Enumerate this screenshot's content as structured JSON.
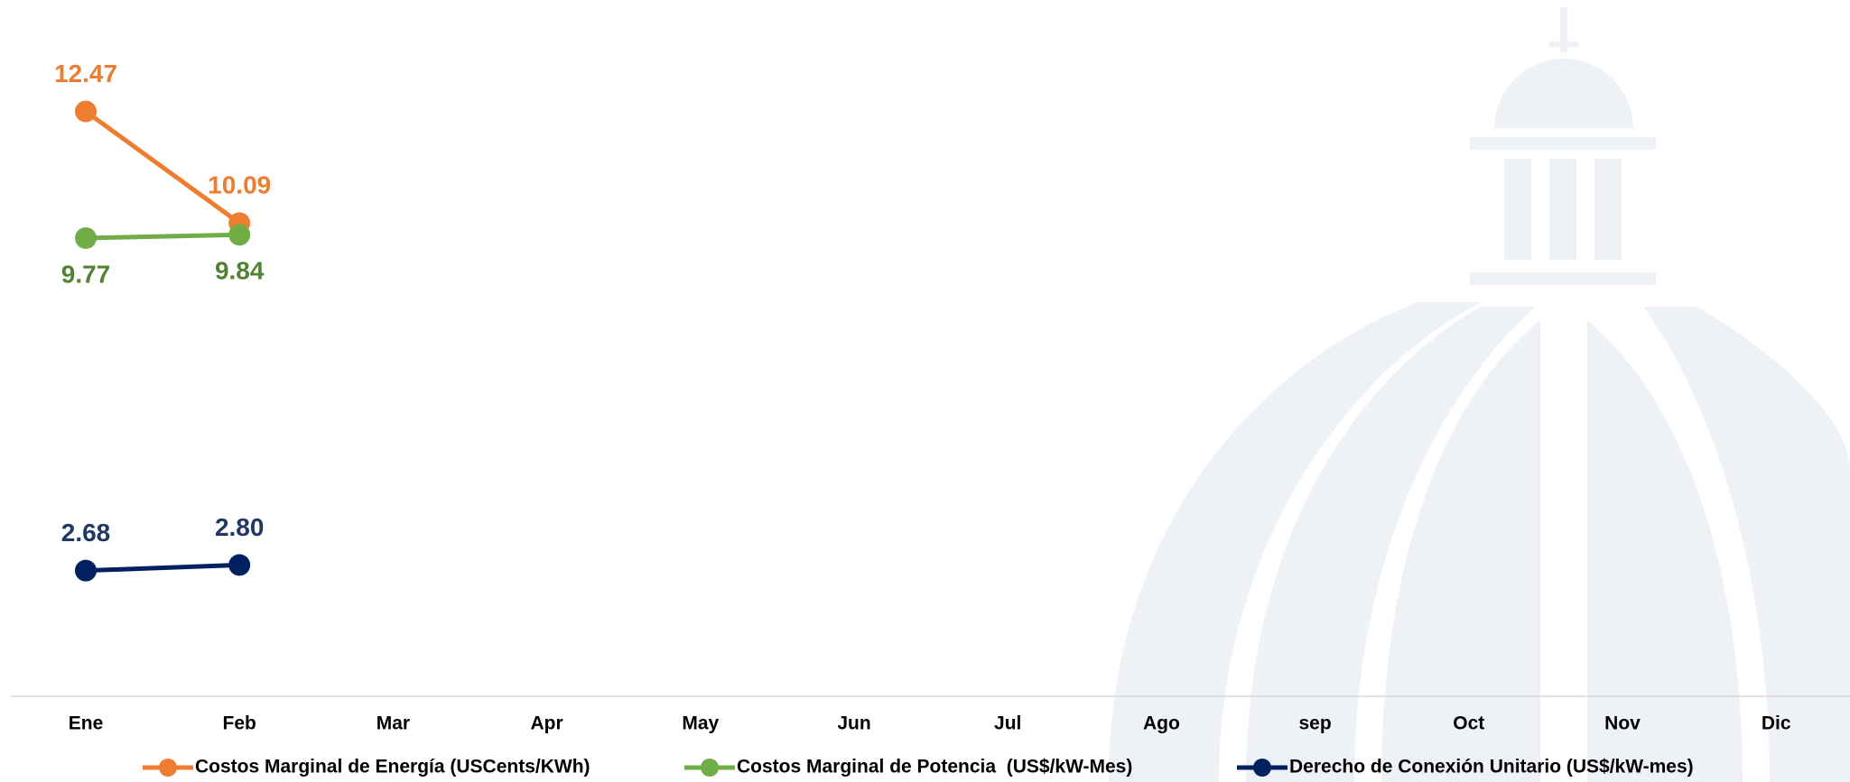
{
  "chart_data": {
    "type": "line",
    "categories": [
      "Ene",
      "Feb",
      "Mar",
      "Apr",
      "May",
      "Jun",
      "Jul",
      "Ago",
      "sep",
      "Oct",
      "Nov",
      "Dic"
    ],
    "ylim": [
      0,
      14
    ],
    "series": [
      {
        "name": "Costos Marginal de Energía (USCents/KWh)",
        "color": "#ED7D31",
        "values": [
          12.47,
          10.09,
          null,
          null,
          null,
          null,
          null,
          null,
          null,
          null,
          null,
          null
        ]
      },
      {
        "name": "Costos Marginal de Potencia  (US$/kW-Mes)",
        "color": "#70AD47",
        "values": [
          9.77,
          9.84,
          null,
          null,
          null,
          null,
          null,
          null,
          null,
          null,
          null,
          null
        ]
      },
      {
        "name": "Derecho de Conexión Unitario (US$/kW-mes)",
        "color": "#002060",
        "values": [
          2.68,
          2.8,
          null,
          null,
          null,
          null,
          null,
          null,
          null,
          null,
          null,
          null
        ],
        "value_labels": [
          "2.68",
          "2.80",
          null,
          null,
          null,
          null,
          null,
          null,
          null,
          null,
          null,
          null
        ]
      }
    ]
  }
}
